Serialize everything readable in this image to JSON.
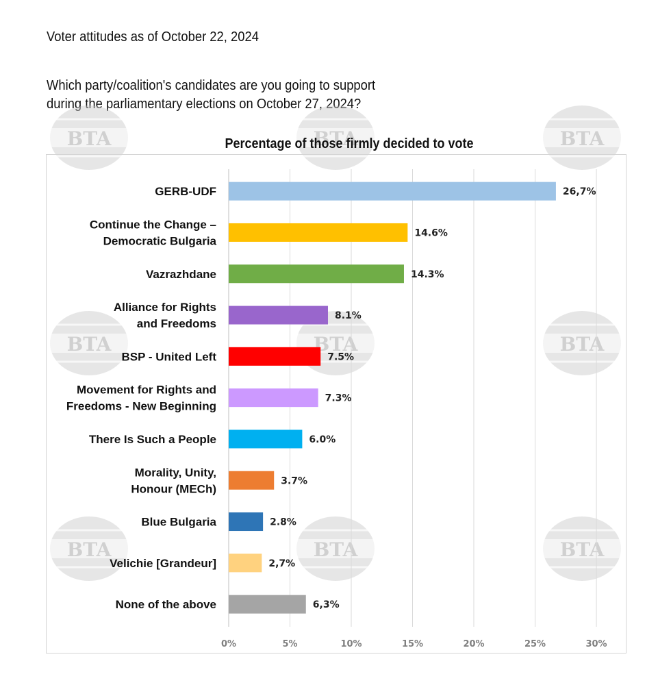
{
  "header": {
    "date_line": "Voter attitudes as of October 22, 2024",
    "question_line1": "Which party/coalition's candidates are you going to support",
    "question_line2": "during the parliamentary elections on October 27, 2024?"
  },
  "watermark": {
    "text": "BTA",
    "color": "#c8c8c8"
  },
  "chart_data": {
    "type": "bar",
    "orientation": "horizontal",
    "title": "Percentage of those firmly decided to vote",
    "categories": [
      [
        "GERB-UDF"
      ],
      [
        "Continue the Change –",
        "Democratic Bulgaria"
      ],
      [
        "Vazrazhdane"
      ],
      [
        "Alliance for Rights",
        "and Freedoms"
      ],
      [
        "BSP - United Left"
      ],
      [
        "Movement for Rights and",
        "Freedoms - New Beginning"
      ],
      [
        "There Is Such a People"
      ],
      [
        "Morality, Unity,",
        "Honour (MECh)"
      ],
      [
        "Blue Bulgaria"
      ],
      [
        "Velichie [Grandeur]"
      ],
      [
        "None of the above"
      ]
    ],
    "values": [
      26.7,
      14.6,
      14.3,
      8.1,
      7.5,
      7.3,
      6.0,
      3.7,
      2.8,
      2.7,
      6.3
    ],
    "data_labels": [
      "26,7%",
      "14.6%",
      "14.3%",
      "8.1%",
      "7.5%",
      "7.3%",
      "6.0%",
      "3.7%",
      "2.8%",
      "2,7%",
      "6,3%"
    ],
    "colors": [
      "#9DC3E6",
      "#FFC000",
      "#70AD47",
      "#9966CC",
      "#FF0000",
      "#CC99FF",
      "#00B0F0",
      "#ED7D31",
      "#2E75B6",
      "#FFD27F",
      "#A5A5A5"
    ],
    "xlim": [
      0,
      30
    ],
    "xticks": [
      0,
      5,
      10,
      15,
      20,
      25,
      30
    ],
    "xtick_labels": [
      "0%",
      "5%",
      "10%",
      "15%",
      "20%",
      "25%",
      "30%"
    ],
    "grid": true,
    "legend": "none"
  }
}
